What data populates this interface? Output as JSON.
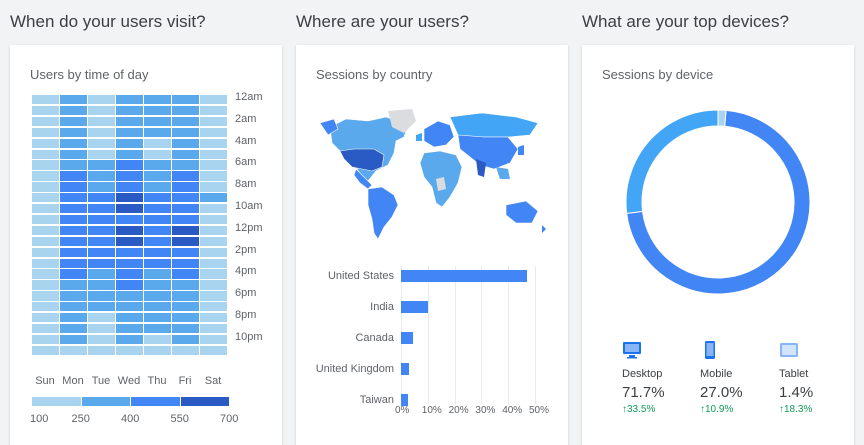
{
  "sections": {
    "visit": "When do your users visit?",
    "where": "Where are your users?",
    "devices": "What are your top devices?"
  },
  "time_card": {
    "title": "Users by time of day",
    "hours": [
      "12am",
      "2am",
      "4am",
      "6am",
      "8am",
      "10am",
      "12pm",
      "2pm",
      "4pm",
      "6pm",
      "8pm",
      "10pm"
    ],
    "days": [
      "Sun",
      "Mon",
      "Tue",
      "Wed",
      "Thu",
      "Fri",
      "Sat"
    ],
    "legend": [
      "100",
      "250",
      "400",
      "550",
      "700"
    ],
    "colors": [
      "#a8d4f0",
      "#5aa9ec",
      "#4285f4",
      "#2a5bc4"
    ]
  },
  "country_card": {
    "title": "Sessions by country",
    "chart_data": {
      "type": "bar",
      "categories": [
        "United States",
        "India",
        "Canada",
        "United Kingdom",
        "Taiwan"
      ],
      "values": [
        47,
        10,
        4.5,
        3,
        2.5
      ],
      "xlim": [
        0,
        50
      ],
      "x_ticks": [
        "0%",
        "10%",
        "20%",
        "30%",
        "40%",
        "50%"
      ]
    }
  },
  "device_card": {
    "title": "Sessions by device",
    "chart_data": {
      "type": "pie",
      "categories": [
        "Desktop",
        "Mobile",
        "Tablet"
      ],
      "values": [
        71.7,
        27.0,
        1.4
      ],
      "colors": [
        "#4285f4",
        "#42a5f5",
        "#a8d4f0"
      ]
    },
    "devices": [
      {
        "name": "Desktop",
        "pct": "71.7%",
        "change": "33.5%",
        "icon": "desktop-icon"
      },
      {
        "name": "Mobile",
        "pct": "27.0%",
        "change": "10.9%",
        "icon": "mobile-icon"
      },
      {
        "name": "Tablet",
        "pct": "1.4%",
        "change": "18.3%",
        "icon": "tablet-icon"
      }
    ]
  }
}
